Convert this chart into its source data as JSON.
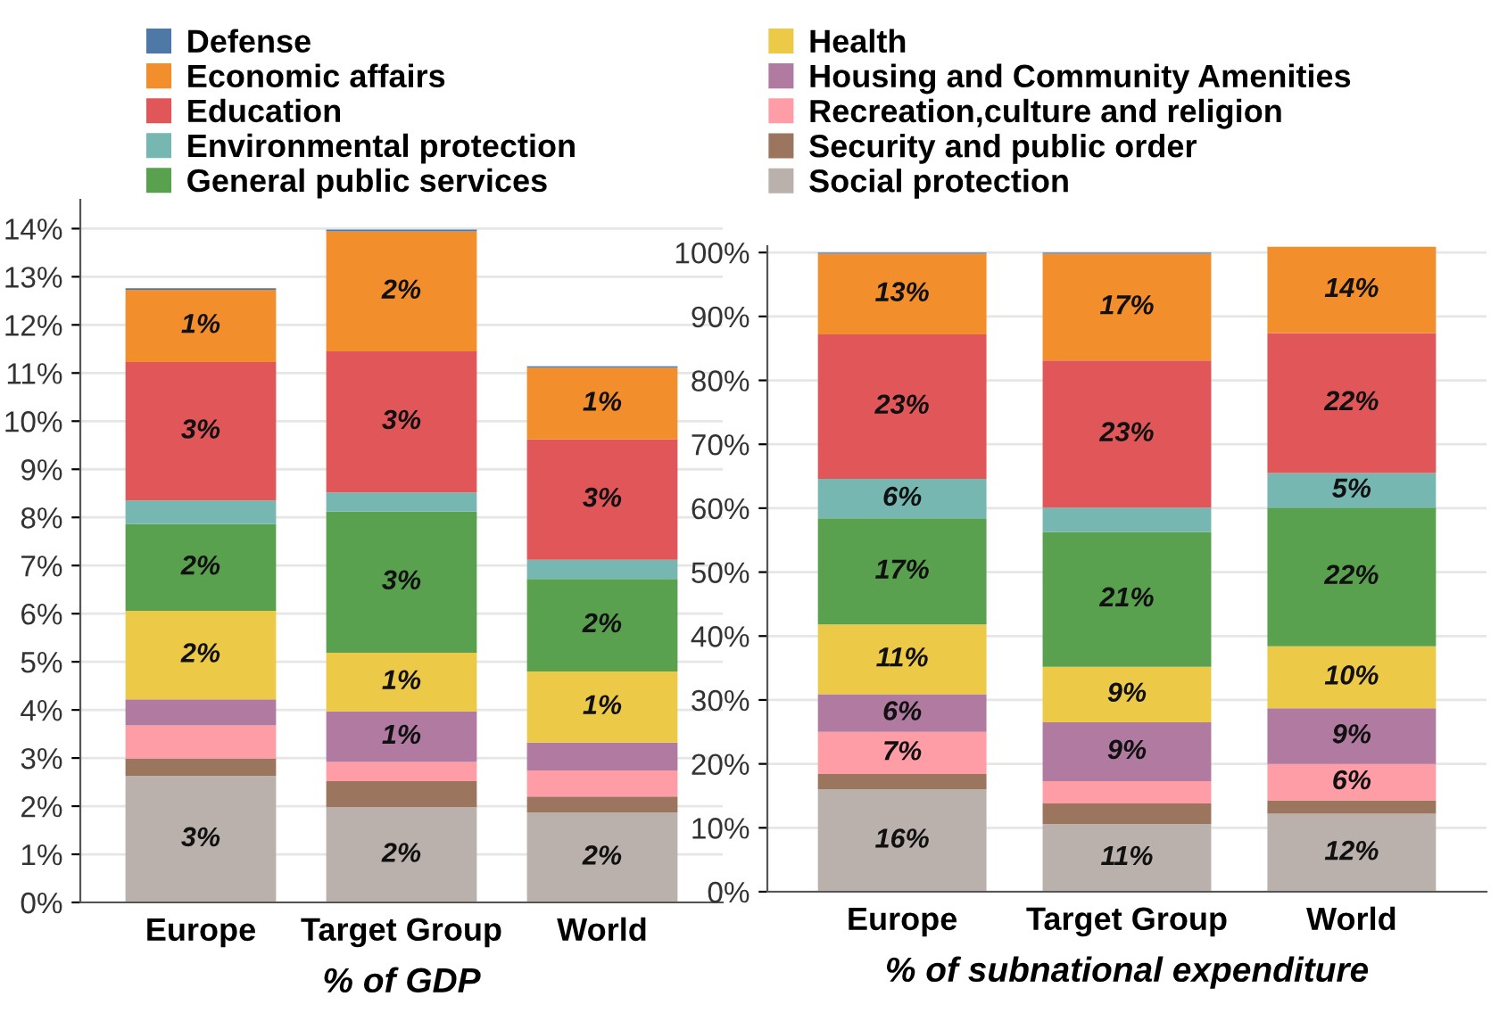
{
  "chart_data": [
    {
      "type": "bar",
      "stacked": true,
      "xlabel": "% of GDP",
      "categories": [
        "Europe",
        "Target Group",
        "World"
      ],
      "ylim": [
        0,
        14.6
      ],
      "yticks": [
        {
          "value": 0,
          "label": "0%"
        },
        {
          "value": 1,
          "label": "1%"
        },
        {
          "value": 2,
          "label": "2%"
        },
        {
          "value": 3,
          "label": "3%"
        },
        {
          "value": 4,
          "label": "4%"
        },
        {
          "value": 5,
          "label": "5%"
        },
        {
          "value": 6,
          "label": "6%"
        },
        {
          "value": 7,
          "label": "7%"
        },
        {
          "value": 8,
          "label": "8%"
        },
        {
          "value": 9,
          "label": "9%"
        },
        {
          "value": 10,
          "label": "10%"
        },
        {
          "value": 11,
          "label": "11%"
        },
        {
          "value": 12,
          "label": "12%"
        },
        {
          "value": 13,
          "label": "13%"
        },
        {
          "value": 14,
          "label": "14%"
        }
      ],
      "grid": "y",
      "legend": "top",
      "series": [
        {
          "name": "Social protection",
          "color": "#bab0ac",
          "values": [
            2.63,
            1.98,
            1.87
          ],
          "value_labels": [
            "3%",
            "2%",
            "2%"
          ]
        },
        {
          "name": "Security and public order",
          "color": "#9c755f",
          "values": [
            0.36,
            0.54,
            0.33
          ],
          "value_labels": [
            null,
            null,
            null
          ]
        },
        {
          "name": "Recreation,culture and religion",
          "color": "#ff9da7",
          "values": [
            0.69,
            0.4,
            0.54
          ],
          "value_labels": [
            null,
            null,
            null
          ]
        },
        {
          "name": "Housing and Community Amenities",
          "color": "#b07aa1",
          "values": [
            0.54,
            1.05,
            0.58
          ],
          "value_labels": [
            null,
            "1%",
            null
          ]
        },
        {
          "name": "Health",
          "color": "#edc948",
          "values": [
            1.84,
            1.22,
            1.48
          ],
          "value_labels": [
            "2%",
            "1%",
            "1%"
          ]
        },
        {
          "name": "General public services",
          "color": "#59a14f",
          "values": [
            1.8,
            2.93,
            1.92
          ],
          "value_labels": [
            "2%",
            "3%",
            "2%"
          ]
        },
        {
          "name": "Environmental protection",
          "color": "#76b7b2",
          "values": [
            0.49,
            0.4,
            0.4
          ],
          "value_labels": [
            null,
            null,
            null
          ]
        },
        {
          "name": "Education",
          "color": "#e15759",
          "values": [
            2.88,
            2.93,
            2.5
          ],
          "value_labels": [
            "3%",
            "3%",
            "3%"
          ]
        },
        {
          "name": "Economic affairs",
          "color": "#f28e2b",
          "values": [
            1.5,
            2.49,
            1.49
          ],
          "value_labels": [
            "1%",
            "2%",
            "1%"
          ]
        },
        {
          "name": "Defense",
          "color": "#4e79a7",
          "values": [
            0.03,
            0.04,
            0.03
          ],
          "value_labels": [
            null,
            null,
            null
          ]
        }
      ]
    },
    {
      "type": "bar",
      "stacked": true,
      "xlabel": "% of subnational expenditure",
      "categories": [
        "Europe",
        "Target Group",
        "World"
      ],
      "ylim": [
        0,
        101
      ],
      "yticks": [
        {
          "value": 0,
          "label": "0%"
        },
        {
          "value": 10,
          "label": "10%"
        },
        {
          "value": 20,
          "label": "20%"
        },
        {
          "value": 30,
          "label": "30%"
        },
        {
          "value": 40,
          "label": "40%"
        },
        {
          "value": 50,
          "label": "50%"
        },
        {
          "value": 60,
          "label": "60%"
        },
        {
          "value": 70,
          "label": "70%"
        },
        {
          "value": 80,
          "label": "80%"
        },
        {
          "value": 90,
          "label": "90%"
        },
        {
          "value": 100,
          "label": "100%"
        }
      ],
      "grid": "y",
      "series": [
        {
          "color": "#bab0ac",
          "values": [
            16.0,
            10.6,
            12.2
          ],
          "value_labels": [
            "16%",
            "11%",
            "12%"
          ]
        },
        {
          "color": "#9c755f",
          "values": [
            2.4,
            3.2,
            2.1
          ],
          "value_labels": [
            null,
            null,
            null
          ]
        },
        {
          "color": "#ff9da7",
          "values": [
            6.6,
            3.5,
            5.7
          ],
          "value_labels": [
            "7%",
            null,
            "6%"
          ]
        },
        {
          "color": "#b07aa1",
          "values": [
            5.9,
            9.2,
            8.7
          ],
          "value_labels": [
            "6%",
            "9%",
            "9%"
          ]
        },
        {
          "color": "#edc948",
          "values": [
            10.9,
            8.7,
            9.7
          ],
          "value_labels": [
            "11%",
            "9%",
            "10%"
          ]
        },
        {
          "color": "#59a14f",
          "values": [
            16.6,
            21.1,
            21.7
          ],
          "value_labels": [
            "17%",
            "21%",
            "22%"
          ]
        },
        {
          "color": "#76b7b2",
          "values": [
            6.2,
            3.8,
            5.4
          ],
          "value_labels": [
            "6%",
            null,
            "5%"
          ]
        },
        {
          "color": "#e15759",
          "values": [
            22.6,
            23.0,
            21.9
          ],
          "value_labels": [
            "23%",
            "23%",
            "22%"
          ]
        },
        {
          "color": "#f28e2b",
          "values": [
            12.6,
            16.7,
            13.5
          ],
          "value_labels": [
            "13%",
            "17%",
            "14%"
          ]
        },
        {
          "color": "#4e79a7",
          "values": [
            0.2,
            0.2,
            null
          ],
          "value_labels": [
            null,
            null,
            null
          ]
        }
      ]
    }
  ]
}
